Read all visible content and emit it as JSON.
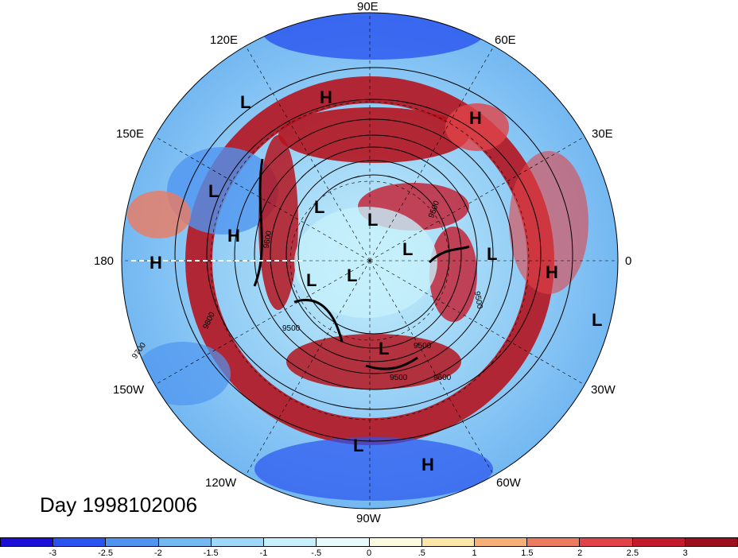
{
  "date_label": "Day 1998102006",
  "longitude_labels": {
    "e90": "90E",
    "e120": "120E",
    "e60": "60E",
    "e150": "150E",
    "e30": "30E",
    "d180": "180",
    "d0": "0",
    "w150": "150W",
    "w30": "30W",
    "w120": "120W",
    "w60": "60W",
    "w90": "90W"
  },
  "pressure_centers": [
    {
      "label": "L"
    },
    {
      "label": "H"
    },
    {
      "label": "H"
    },
    {
      "label": "L"
    },
    {
      "label": "H"
    },
    {
      "label": "H"
    },
    {
      "label": "L"
    },
    {
      "label": "L"
    },
    {
      "label": "L"
    },
    {
      "label": "L"
    },
    {
      "label": "L"
    },
    {
      "label": "L"
    },
    {
      "label": "H"
    },
    {
      "label": "L"
    },
    {
      "label": "L"
    },
    {
      "label": "L"
    },
    {
      "label": "H"
    }
  ],
  "contour_labels": [
    "9500",
    "9500",
    "9600",
    "9700",
    "9800",
    "9500",
    "9500",
    "9600",
    "9500"
  ],
  "colorbar": {
    "colors": [
      "#1c10d8",
      "#2a54ef",
      "#4f95f0",
      "#74b8f2",
      "#9ed7f8",
      "#c6f0fb",
      "#e8fbfd",
      "#fdfbdf",
      "#fbe6a8",
      "#f5b07a",
      "#ec7b60",
      "#e14348",
      "#c41a2e",
      "#9c0f1d"
    ],
    "ticks": [
      "-3",
      "-2.5",
      "-2",
      "-1.5",
      "-1",
      "-.5",
      "0",
      ".5",
      "1",
      "1.5",
      "2",
      "2.5",
      "3"
    ]
  }
}
